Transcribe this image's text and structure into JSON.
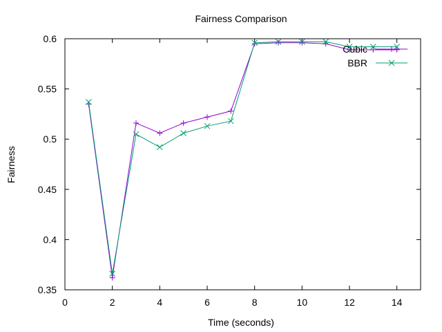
{
  "chart_data": {
    "type": "line",
    "title": "Fairness Comparison",
    "xlabel": "Time (seconds)",
    "ylabel": "Fairness",
    "xlim": [
      0,
      15
    ],
    "ylim": [
      0.35,
      0.6
    ],
    "xticks": [
      0,
      2,
      4,
      6,
      8,
      10,
      12,
      14
    ],
    "yticks": [
      0.35,
      0.4,
      0.45,
      0.5,
      0.55,
      0.6
    ],
    "xtick_labels": [
      "0",
      "2",
      "4",
      "6",
      "8",
      "10",
      "12",
      "14"
    ],
    "ytick_labels": [
      "0.35",
      "0.4",
      "0.45",
      "0.5",
      "0.55",
      "0.6"
    ],
    "grid": false,
    "legend_position": "top-right",
    "series": [
      {
        "name": "Cubic",
        "color": "#9400d3",
        "marker": "plus",
        "x": [
          1,
          2,
          3,
          4,
          5,
          6,
          7,
          8,
          9,
          10,
          11,
          12,
          13,
          14
        ],
        "y": [
          0.535,
          0.362,
          0.516,
          0.506,
          0.516,
          0.522,
          0.528,
          0.595,
          0.596,
          0.596,
          0.595,
          0.589,
          0.589,
          0.589
        ]
      },
      {
        "name": "BBR",
        "color": "#009e73",
        "marker": "cross",
        "x": [
          1,
          2,
          3,
          4,
          5,
          6,
          7,
          8,
          9,
          10,
          11,
          12,
          13,
          14
        ],
        "y": [
          0.537,
          0.366,
          0.505,
          0.492,
          0.506,
          0.513,
          0.518,
          0.596,
          0.597,
          0.597,
          0.597,
          0.592,
          0.592,
          0.592
        ]
      }
    ]
  }
}
